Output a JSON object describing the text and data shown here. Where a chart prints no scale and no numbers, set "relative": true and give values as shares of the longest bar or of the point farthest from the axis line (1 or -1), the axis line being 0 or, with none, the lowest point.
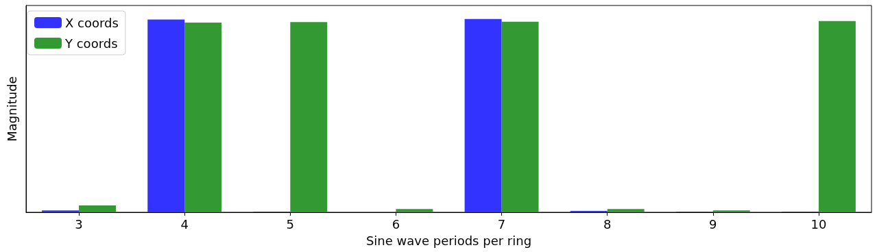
{
  "chart_data": {
    "type": "bar",
    "relative": true,
    "xlabel": "Sine wave periods per ring",
    "ylabel": "Magnitude",
    "categories": [
      "3",
      "4",
      "5",
      "6",
      "7",
      "8",
      "9",
      "10"
    ],
    "series": [
      {
        "name": "X coords",
        "color": "#3333ff",
        "values": [
          0.01,
          0.997,
          0.003,
          0,
          1,
          0.007,
          0.003,
          0.003
        ]
      },
      {
        "name": "Y coords",
        "color": "#339933",
        "values": [
          0.035,
          0.981,
          0.984,
          0.017,
          0.986,
          0.017,
          0.01,
          0.989
        ]
      }
    ],
    "legend": "top left",
    "grid": false
  }
}
